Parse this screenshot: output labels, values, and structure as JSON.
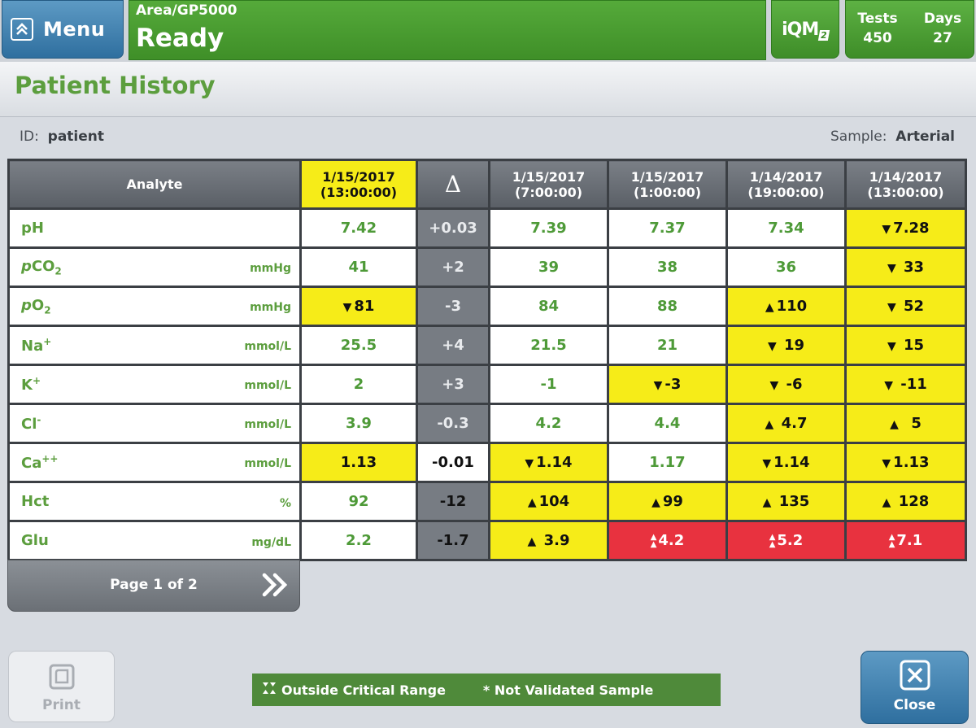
{
  "header": {
    "menu_label": "Menu",
    "area": "Area/GP5000",
    "status": "Ready",
    "iqm_text": "iQM",
    "iqm_sub": "2",
    "tests_label": "Tests",
    "tests_value": "450",
    "days_label": "Days",
    "days_value": "27"
  },
  "page": {
    "title": "Patient History",
    "id_label": "ID:",
    "id_value": "patient",
    "sample_label": "Sample:",
    "sample_value": "Arterial"
  },
  "table": {
    "analyte_header": "Analyte",
    "delta_header": "Δ",
    "dates": [
      {
        "date": "1/15/2017",
        "time": "(13:00:00)"
      },
      {
        "date": "1/15/2017",
        "time": "(7:00:00)"
      },
      {
        "date": "1/15/2017",
        "time": "(1:00:00)"
      },
      {
        "date": "1/14/2017",
        "time": "(19:00:00)"
      },
      {
        "date": "1/14/2017",
        "time": "(13:00:00)"
      }
    ],
    "analytes": [
      {
        "name": "pH",
        "unit": "",
        "current": "7.42",
        "delta": "+0.03",
        "history": [
          "7.39",
          "7.37",
          "7.34",
          "7.28"
        ]
      },
      {
        "name": "pCO2",
        "unit": "mmHg",
        "current": "41",
        "delta": "+2",
        "history": [
          "39",
          "38",
          "36",
          "33"
        ]
      },
      {
        "name": "pO2",
        "unit": "mmHg",
        "current": "81",
        "delta": "-3",
        "history": [
          "84",
          "88",
          "110",
          "52"
        ]
      },
      {
        "name": "Na+",
        "unit": "mmol/L",
        "current": "25.5",
        "delta": "+4",
        "history": [
          "21.5",
          "21",
          "19",
          "15"
        ]
      },
      {
        "name": "K+",
        "unit": "mmol/L",
        "current": "2",
        "delta": "+3",
        "history": [
          "-1",
          "-3",
          "-6",
          "-11"
        ]
      },
      {
        "name": "Cl-",
        "unit": "mmol/L",
        "current": "3.9",
        "delta": "-0.3",
        "history": [
          "4.2",
          "4.4",
          "4.7",
          "5"
        ]
      },
      {
        "name": "Ca++",
        "unit": "mmol/L",
        "current": "1.13",
        "delta": "-0.01",
        "history": [
          "1.14",
          "1.17",
          "1.14",
          "1.13"
        ]
      },
      {
        "name": "Hct",
        "unit": "%",
        "current": "92",
        "delta": "-12",
        "history": [
          "104",
          "99",
          "135",
          "128"
        ]
      },
      {
        "name": "Glu",
        "unit": "mg/dL",
        "current": "2.2",
        "delta": "-1.7",
        "history": [
          "3.9",
          "4.2",
          "5.2",
          "7.1"
        ]
      }
    ]
  },
  "pagination": {
    "label": "Page 1 of 2"
  },
  "footer": {
    "print_label": "Print",
    "legend_critical": "Outside Critical Range",
    "legend_validated": "* Not Validated Sample",
    "close_label": "Close"
  },
  "colors": {
    "status_green": "#4e9a38",
    "highlight_yellow": "#f6ec18",
    "critical_red": "#e8323f",
    "button_blue": "#3d7fae",
    "header_gray": "#6b7076"
  }
}
